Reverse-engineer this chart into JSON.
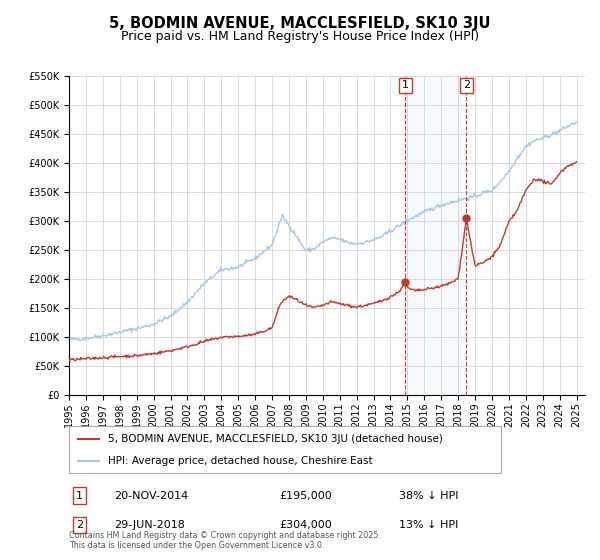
{
  "title": "5, BODMIN AVENUE, MACCLESFIELD, SK10 3JU",
  "subtitle": "Price paid vs. HM Land Registry's House Price Index (HPI)",
  "ylim": [
    0,
    550000
  ],
  "xlim_start": 1995.0,
  "xlim_end": 2025.5,
  "yticks": [
    0,
    50000,
    100000,
    150000,
    200000,
    250000,
    300000,
    350000,
    400000,
    450000,
    500000,
    550000
  ],
  "ytick_labels": [
    "£0",
    "£50K",
    "£100K",
    "£150K",
    "£200K",
    "£250K",
    "£300K",
    "£350K",
    "£400K",
    "£450K",
    "£500K",
    "£550K"
  ],
  "xticks": [
    1995,
    1996,
    1997,
    1998,
    1999,
    2000,
    2001,
    2002,
    2003,
    2004,
    2005,
    2006,
    2007,
    2008,
    2009,
    2010,
    2011,
    2012,
    2013,
    2014,
    2015,
    2016,
    2017,
    2018,
    2019,
    2020,
    2021,
    2022,
    2023,
    2024,
    2025
  ],
  "hpi_color": "#a8c8e8",
  "price_color": "#c0392b",
  "vline1_x": 2014.88,
  "vline2_x": 2018.49,
  "vline_color": "#c0392b",
  "shade_color": "#d8eaf8",
  "marker1_x": 2014.88,
  "marker1_y": 195000,
  "marker2_x": 2018.49,
  "marker2_y": 304000,
  "legend_label1": "5, BODMIN AVENUE, MACCLESFIELD, SK10 3JU (detached house)",
  "legend_label2": "HPI: Average price, detached house, Cheshire East",
  "annotation1_date": "20-NOV-2014",
  "annotation1_price": "£195,000",
  "annotation1_hpi": "38% ↓ HPI",
  "annotation2_date": "29-JUN-2018",
  "annotation2_price": "£304,000",
  "annotation2_hpi": "13% ↓ HPI",
  "footer": "Contains HM Land Registry data © Crown copyright and database right 2025.\nThis data is licensed under the Open Government Licence v3.0.",
  "bg_color": "#ffffff",
  "grid_color": "#cccccc",
  "title_fontsize": 10.5,
  "subtitle_fontsize": 9,
  "tick_fontsize": 7,
  "legend_fontsize": 7.5,
  "annot_fontsize": 8
}
